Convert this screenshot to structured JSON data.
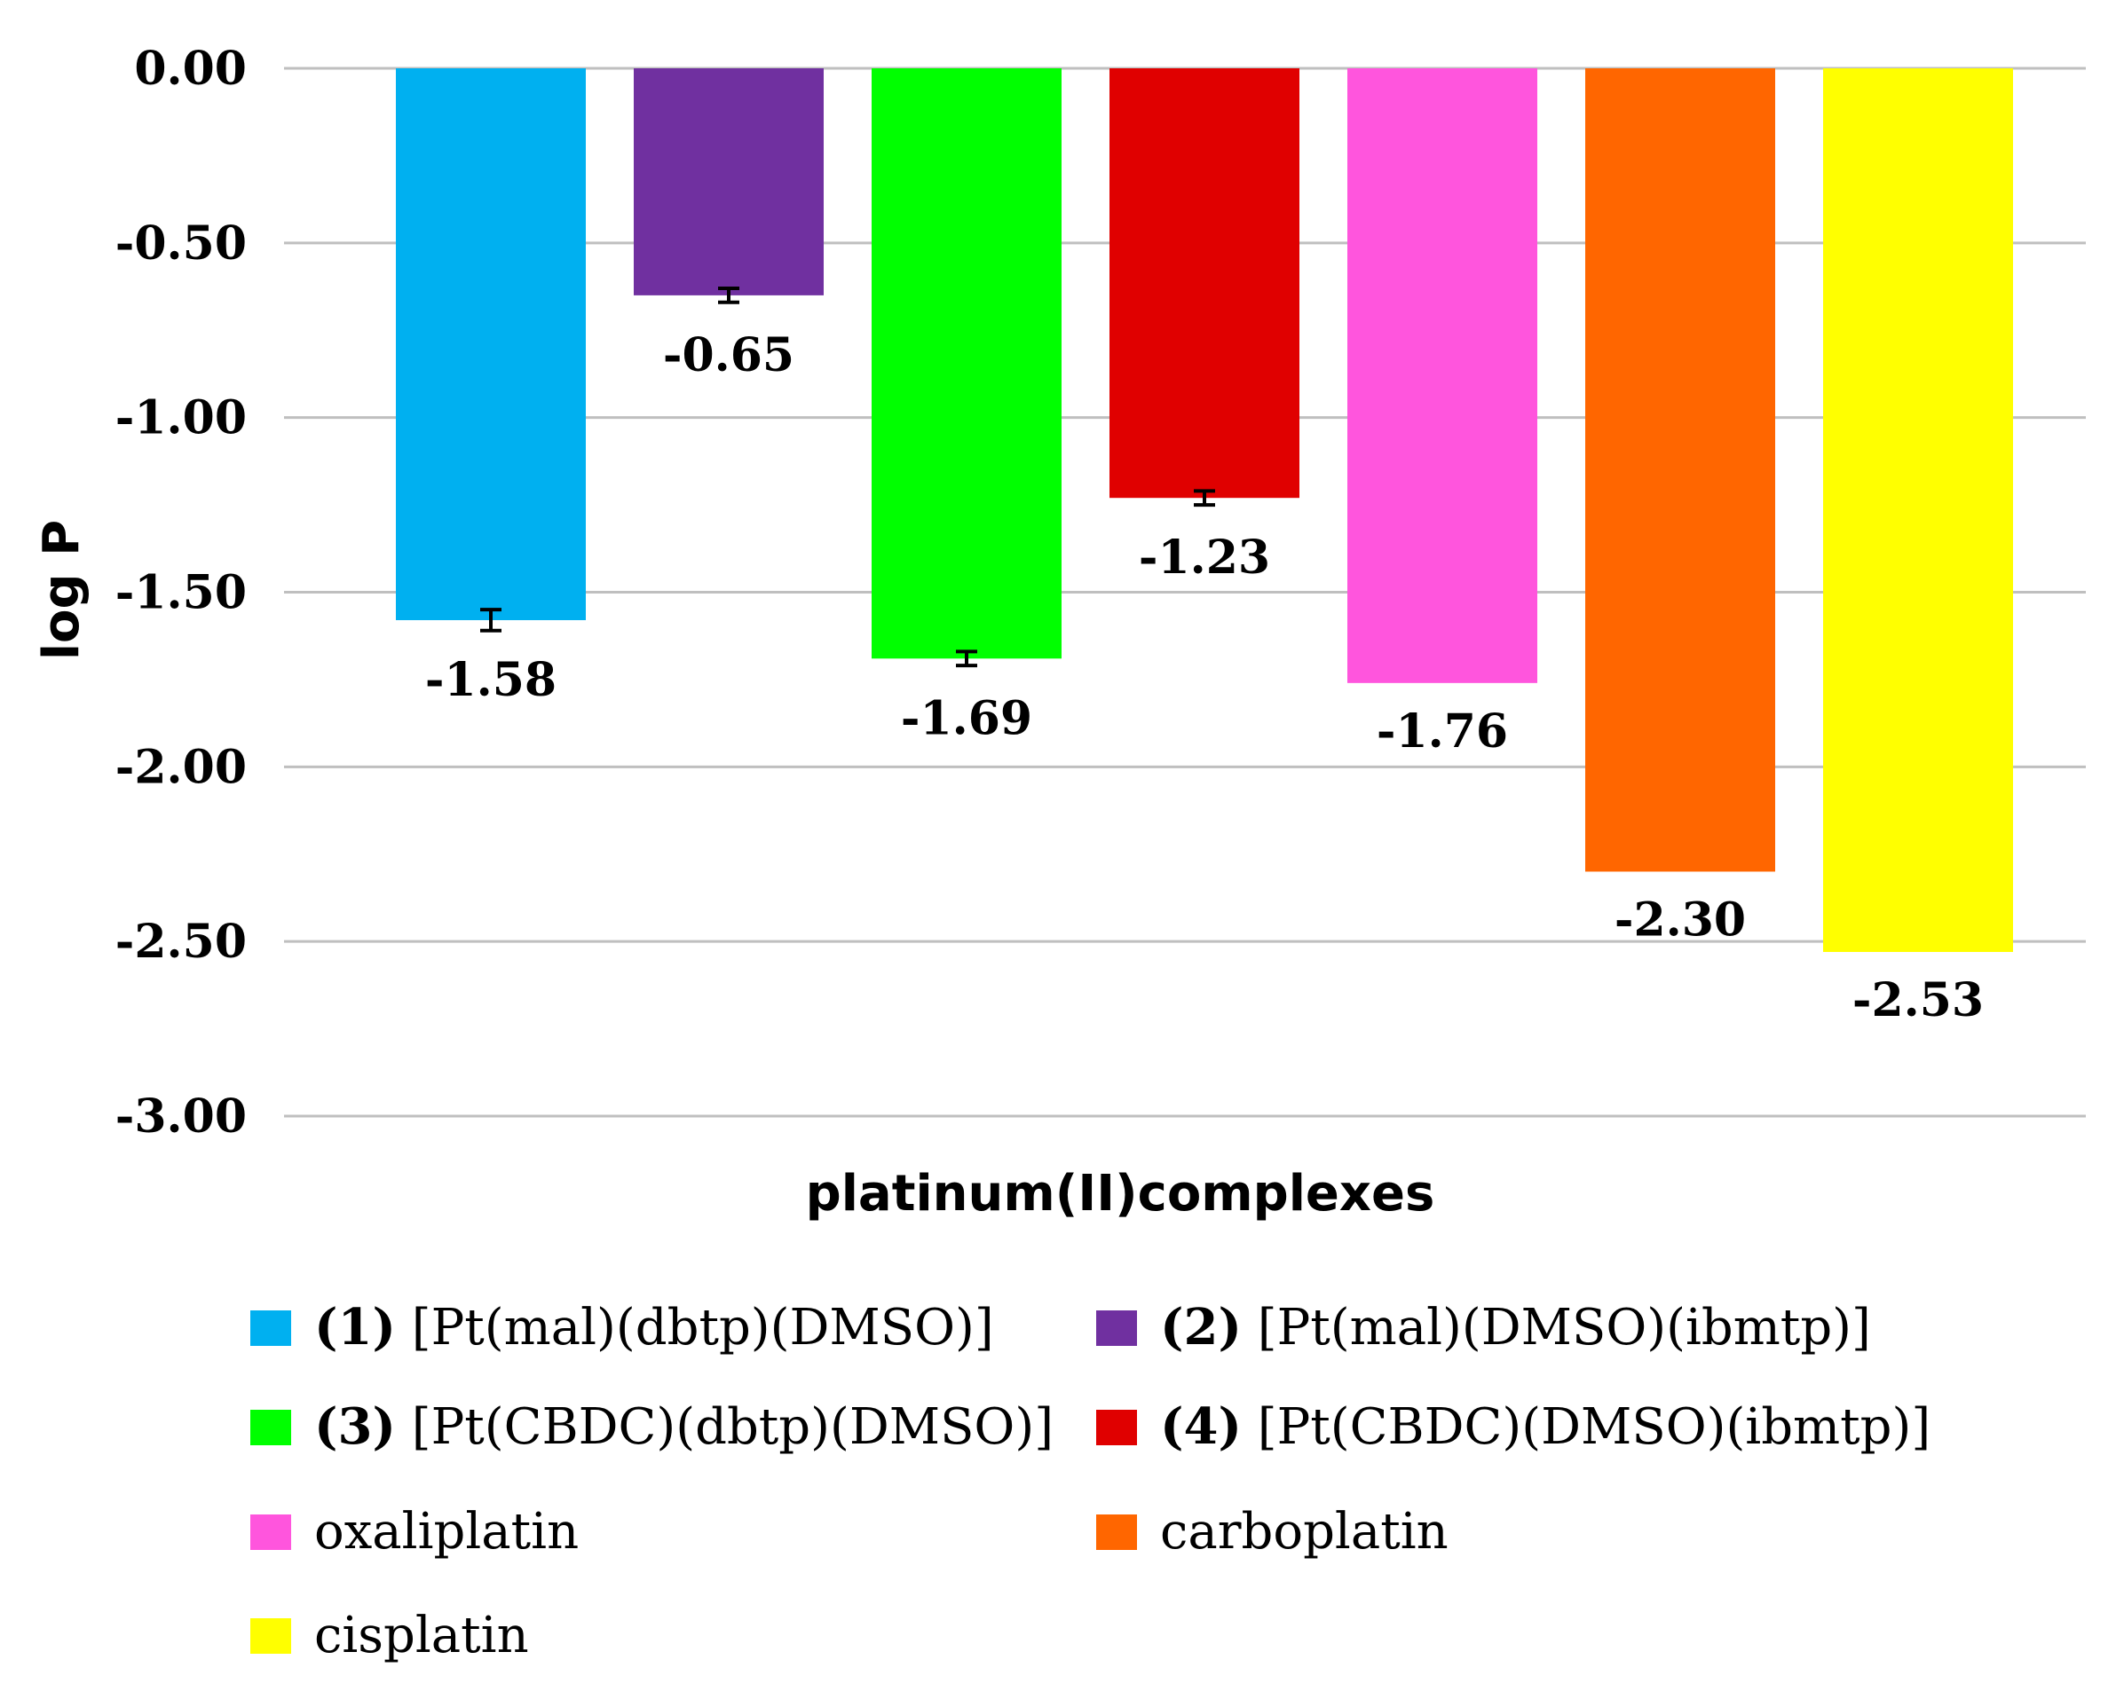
{
  "chart_data": {
    "type": "bar",
    "title": "",
    "xlabel": "platinum(II)complexes",
    "ylabel": "log P",
    "ylim": [
      -3.0,
      0.0
    ],
    "yticks": [
      0.0,
      -0.5,
      -1.0,
      -1.5,
      -2.0,
      -2.5,
      -3.0
    ],
    "ytick_labels": [
      "0.00",
      "-0.50",
      "-1.00",
      "-1.50",
      "-2.00",
      "-2.50",
      "-3.00"
    ],
    "grid": true,
    "legend_position": "bottom",
    "categories": [
      "(1) [Pt(mal)(dbtp)(DMSO)]",
      "(2) [Pt(mal)(DMSO)(ibmtp)]",
      "(3) [Pt(CBDC)(dbtp)(DMSO)]",
      "(4) [Pt(CBDC)(DMSO)(ibmtp)]",
      "oxaliplatin",
      "carboplatin",
      "cisplatin"
    ],
    "values": [
      -1.58,
      -0.65,
      -1.69,
      -1.23,
      -1.76,
      -2.3,
      -2.53
    ],
    "value_labels": [
      "-1.58",
      "-0.65",
      "-1.69",
      "-1.23",
      "-1.76",
      "-2.30",
      "-2.53"
    ],
    "errors": [
      0.03,
      0.02,
      0.02,
      0.02,
      null,
      null,
      null
    ],
    "colors": [
      "#00b0f0",
      "#7030a0",
      "#00ff00",
      "#e00000",
      "#ff55dd",
      "#ff6600",
      "#ffff00"
    ],
    "legend": [
      {
        "num": "(1)",
        "text": " [Pt(mal)(dbtp)(DMSO)]"
      },
      {
        "num": "(2)",
        "text": " [Pt(mal)(DMSO)(ibmtp)]"
      },
      {
        "num": "(3)",
        "text": " [Pt(CBDC)(dbtp)(DMSO)]"
      },
      {
        "num": "(4)",
        "text": " [Pt(CBDC)(DMSO)(ibmtp)]"
      },
      {
        "num": "",
        "text": "oxaliplatin"
      },
      {
        "num": "",
        "text": "carboplatin"
      },
      {
        "num": "",
        "text": "cisplatin"
      }
    ]
  }
}
